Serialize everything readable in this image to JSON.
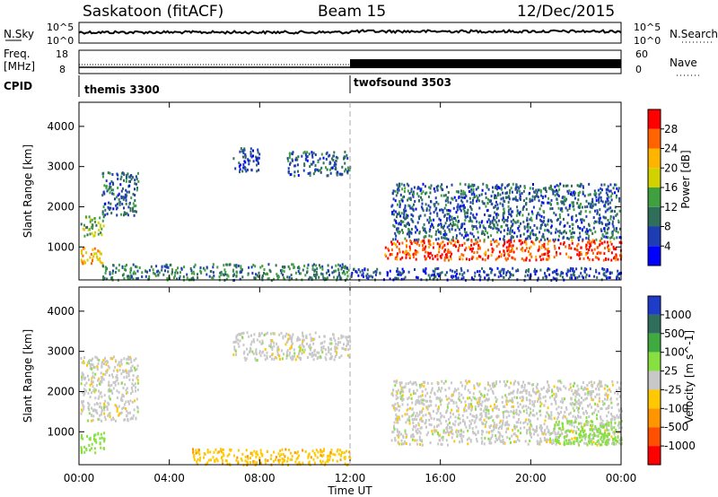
{
  "header": {
    "title": "Saskatoon (fitACF)",
    "beam": "Beam 15",
    "date": "12/Dec/2015"
  },
  "noise_panel": {
    "left_label": "N.Sky",
    "right_label": "N.Search",
    "left_ticks": [
      "10^5",
      "10^0"
    ],
    "right_ticks": [
      "10^5",
      "10^0"
    ]
  },
  "freq_panel": {
    "left_label_1": "Freq.",
    "left_label_2": "[MHz]",
    "right_label": "Nave",
    "left_ticks": [
      "18",
      "8"
    ],
    "right_ticks": [
      "60",
      "0"
    ]
  },
  "cpid": {
    "label": "CPID",
    "modes": [
      {
        "name": "themis 3300",
        "start_hour": 0,
        "end_hour": 12
      },
      {
        "name": "twofsound 3503",
        "start_hour": 12,
        "end_hour": 24
      }
    ]
  },
  "chart_data": [
    {
      "type": "heatmap",
      "name": "power",
      "xlabel": "Time UT",
      "ylabel": "Slant Range [km]",
      "x_ticks": [
        "00:00",
        "04:00",
        "08:00",
        "12:00",
        "16:00",
        "20:00",
        "00:00"
      ],
      "xlim_hours": [
        0,
        24
      ],
      "y_ticks": [
        1000,
        2000,
        3000,
        4000
      ],
      "ylim_km": [
        180,
        4600
      ],
      "colorbar": {
        "label": "Power [dB]",
        "ticks": [
          4,
          8,
          12,
          16,
          20,
          24,
          28
        ],
        "range": [
          0,
          30
        ],
        "colors": [
          "#0000ff",
          "#1e3cb4",
          "#2f6e5a",
          "#3fa03f",
          "#d2d200",
          "#ffb400",
          "#ff6400",
          "#ff0000"
        ]
      },
      "regions": [
        {
          "t0": 0.05,
          "t1": 1.1,
          "r0": 600,
          "r1": 1000,
          "level": 20
        },
        {
          "t0": 0.05,
          "t1": 1.1,
          "r0": 1300,
          "r1": 1800,
          "level": 14
        },
        {
          "t0": 1.0,
          "t1": 2.6,
          "r0": 1800,
          "r1": 2900,
          "level": 8
        },
        {
          "t0": 6.8,
          "t1": 8.0,
          "r0": 2900,
          "r1": 3500,
          "level": 6
        },
        {
          "t0": 9.2,
          "t1": 12.0,
          "r0": 2800,
          "r1": 3400,
          "level": 8
        },
        {
          "t0": 1.0,
          "t1": 12.0,
          "r0": 200,
          "r1": 600,
          "level": 10
        },
        {
          "t0": 13.5,
          "t1": 24.0,
          "r0": 700,
          "r1": 1200,
          "level": 26
        },
        {
          "t0": 13.8,
          "t1": 24.0,
          "r0": 1200,
          "r1": 2600,
          "level": 8
        },
        {
          "t0": 12.0,
          "t1": 24.0,
          "r0": 200,
          "r1": 500,
          "level": 6
        }
      ]
    },
    {
      "type": "heatmap",
      "name": "velocity",
      "xlabel": "Time UT",
      "ylabel": "Slant Range [km]",
      "x_ticks": [
        "00:00",
        "04:00",
        "08:00",
        "12:00",
        "16:00",
        "20:00",
        "00:00"
      ],
      "xlim_hours": [
        0,
        24
      ],
      "y_ticks": [
        1000,
        2000,
        3000,
        4000
      ],
      "ylim_km": [
        180,
        4600
      ],
      "colorbar": {
        "label": "Velocity [m s^-1]",
        "ticks": [
          "1000",
          "500",
          "100",
          "25",
          "-25",
          "-100",
          "-500",
          "-1000"
        ],
        "colors": [
          "#1e3cc8",
          "#2f6e5a",
          "#3faa3f",
          "#88e040",
          "#c8c8c8",
          "#ffc800",
          "#ff9600",
          "#ff5000",
          "#ff0000"
        ]
      },
      "regions": [
        {
          "t0": 0.05,
          "t1": 1.1,
          "r0": 500,
          "r1": 1000,
          "value": 60
        },
        {
          "t0": 0.05,
          "t1": 2.6,
          "r0": 1300,
          "r1": 2900,
          "value": 0
        },
        {
          "t0": 6.8,
          "t1": 12.0,
          "r0": 2800,
          "r1": 3500,
          "value": 0
        },
        {
          "t0": 5.0,
          "t1": 12.0,
          "r0": 200,
          "r1": 600,
          "value": -80
        },
        {
          "t0": 13.8,
          "t1": 24.0,
          "r0": 700,
          "r1": 2300,
          "value": 0
        },
        {
          "t0": 21.0,
          "t1": 24.0,
          "r0": 700,
          "r1": 1300,
          "value": 70
        }
      ]
    }
  ]
}
